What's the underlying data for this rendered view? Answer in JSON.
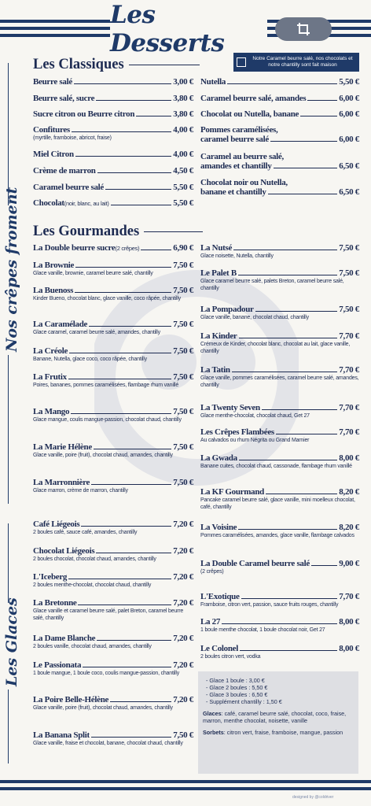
{
  "header": {
    "title": "Les Desserts"
  },
  "side_labels": {
    "crepes": "Nos crêpes froment",
    "glaces": "Les Glaces"
  },
  "note": "Notre Caramel beurre salé, nos chocolats et notre chantilly sont fait maison",
  "sections": {
    "classiques": "Les Classiques",
    "gourmandes": "Les Gourmandes"
  },
  "classiques_left": [
    {
      "name": "Beurre salé",
      "price": "3,00 €",
      "desc": ""
    },
    {
      "name": "Beurre salé, sucre",
      "price": "3,80 €",
      "desc": ""
    },
    {
      "name": "Sucre citron ou Beurre citron",
      "price": "3,80 €",
      "desc": ""
    },
    {
      "name": "Confitures",
      "price": "4,00 €",
      "desc": "(myrtille, framboise, abricot, fraise)"
    },
    {
      "name": "Miel Citron",
      "price": "4,00 €",
      "desc": ""
    },
    {
      "name": "Crème de marron",
      "price": "4,50 €",
      "desc": ""
    },
    {
      "name": "Caramel beurre salé",
      "price": "5,50 €",
      "desc": ""
    },
    {
      "name": "Chocolat",
      "paren": "(noir, blanc, au lait)",
      "price": "5,50 €",
      "desc": ""
    }
  ],
  "classiques_right": [
    {
      "name": "Nutella",
      "price": "5,50 €"
    },
    {
      "name": "Caramel beurre salé, amandes",
      "price": "6,00 €"
    },
    {
      "name": "Chocolat ou Nutella, banane",
      "price": "6,00 €"
    },
    {
      "name": "Pommes caramélisées,",
      "line2": "caramel beurre salé",
      "price": "6,00 €"
    },
    {
      "name": "Caramel au beurre salé,",
      "line2": "amandes et chantilly",
      "price": "6,50 €"
    },
    {
      "name": "Chocolat noir ou Nutella,",
      "line2": "banane et chantilly",
      "price": "6,50 €"
    }
  ],
  "gourmandes_left": [
    {
      "name": "La Double beurre sucre",
      "paren": "(2 crêpes)",
      "price": "6,90 €",
      "desc": ""
    },
    {
      "name": "La Brownie",
      "price": "7,50 €",
      "desc": "Glace vanille, brownie, caramel beurre salé, chantilly"
    },
    {
      "name": "La Buenoss",
      "price": "7,50 €",
      "desc": "Kinder Bueno, chocolat blanc, glace vanille, coco râpée, chantilly"
    },
    {
      "name": "La Caramélade",
      "price": "7,50 €",
      "desc": "Glace caramel, caramel beurre salé, amandes, chantilly"
    },
    {
      "name": "La Créole",
      "price": "7,50 €",
      "desc": "Banane, Nutella, glace coco, coco râpée, chantilly"
    },
    {
      "name": "La Frutix",
      "price": "7,50 €",
      "desc": "Poires, bananes, pommes caramélisées, flambage rhum vanillé"
    },
    {
      "name": "La Mango",
      "price": "7,50 €",
      "desc": "Glace mangue, coulis mangue-passion, chocolat chaud, chantilly"
    },
    {
      "name": "La Marie Hélène",
      "price": "7,50 €",
      "desc": "Glace vanille, poire (fruit), chocolat chaud, amandes, chantilly"
    },
    {
      "name": "La Marronnière",
      "price": "7,50 €",
      "desc": "Glace marron, crème de marron, chantilly"
    }
  ],
  "gourmandes_right": [
    {
      "name": "La Nutsé",
      "price": "7,50 €",
      "desc": "Glace noisette, Nutella, chantilly"
    },
    {
      "name": "Le Palet B",
      "price": "7,50 €",
      "desc": "Glace caramel beurre salé, palets Breton, caramel beurre salé, chantilly"
    },
    {
      "name": "La Pompadour",
      "price": "7,50 €",
      "desc": "Glace vanille, banane, chocolat chaud, chantilly"
    },
    {
      "name": "La Kinder",
      "price": "7,70 €",
      "desc": "Crémeux de Kinder, chocolat blanc, chocolat au lait, glace vanille, chantilly"
    },
    {
      "name": "La Tatin",
      "price": "7,70 €",
      "desc": "Glace vanille, pommes caramélisées, caramel beurre salé, amandes, chantilly"
    },
    {
      "name": "La Twenty Seven",
      "price": "7,70 €",
      "desc": "Glace menthe-chocolat, chocolat chaud, Get 27"
    },
    {
      "name": "Les Crêpes Flambées",
      "price": "7,70 €",
      "desc": "Au calvados ou rhum Négrita ou Grand Marnier"
    },
    {
      "name": "La Gwada",
      "price": "8,00 €",
      "desc": "Banane cuites, chocolat chaud, cassonade, flambage rhum vanillé"
    },
    {
      "name": "La KF Gourmand",
      "price": "8,20 €",
      "desc": "Pancake caramel beurre salé, glace vanille, mini moelleux chocolat, café, chantilly"
    },
    {
      "name": "La Voisine",
      "price": "8,20 €",
      "desc": "Pommes caramélisées, amandes, glace vanille, flambage calvados"
    },
    {
      "name": "La Double Caramel beurre salé",
      "price": "9,00 €",
      "desc": "(2 crêpes)"
    }
  ],
  "glaces_left": [
    {
      "name": "Café Liégeois",
      "price": "7,20 €",
      "desc": "2 boules café, sauce café, amandes, chantilly"
    },
    {
      "name": "Chocolat Liégeois",
      "price": "7,20 €",
      "desc": "2 boules chocolat, chocolat chaud, amandes, chantilly"
    },
    {
      "name": "L'Iceberg",
      "price": "7,20 €",
      "desc": "2 boules menthe-chocolat, chocolat chaud, chantilly"
    },
    {
      "name": "La Bretonne",
      "price": "7,20 €",
      "desc": "Glace vanille et caramel beurre salé, palet Breton, caramel beurre salé, chantilly"
    },
    {
      "name": "La Dame Blanche",
      "price": "7,20 €",
      "desc": "2 boules vanille, chocolat chaud, amandes, chantilly"
    },
    {
      "name": "Le Passionata",
      "price": "7,20 €",
      "desc": "1 boule mangue, 1 boule coco, coulis mangue-passion, chantilly"
    },
    {
      "name": "La Poire Belle-Hélène",
      "price": "7,20 €",
      "desc": "Glace vanille, poire (fruit), chocolat chaud, amandes, chantilly"
    },
    {
      "name": "La Banana Split",
      "price": "7,50 €",
      "desc": "Glace vanille, fraise et chocolat, banane, chocolat chaud, chantilly"
    }
  ],
  "glaces_right": [
    {
      "name": "L'Exotique",
      "price": "7,70 €",
      "desc": "Framboise, citron vert, passion, sauce fruits rouges, chantilly"
    },
    {
      "name": "La 27",
      "price": "8,00 €",
      "desc": "1 boule menthe chocolat, 1 boule chocolat noir, Get 27"
    },
    {
      "name": "Le Colonel",
      "price": "8,00 €",
      "desc": "2 boules citron vert, vodka"
    }
  ],
  "info": {
    "sizes": [
      "- Glace 1 boule : 3,00 €",
      "- Glace 2 boules : 5,50 €",
      "- Glace 3 boules : 6,50 €",
      "- Supplément chantilly : 1,50 €"
    ],
    "glaces_label": "Glaces",
    "glaces_text": ": café, caramel beurre salé, chocolat, coco, fraise, marron, menthe chocolat, noisette, vanille",
    "sorbets_label": "Sorbets",
    "sorbets_text": ": citron vert, fraise, framboise, mangue, passion"
  },
  "footer": "designed by @coldriver",
  "colors": {
    "navy": "#1f3a68",
    "paper": "#f7f6f2",
    "box": "#dedfe3"
  }
}
